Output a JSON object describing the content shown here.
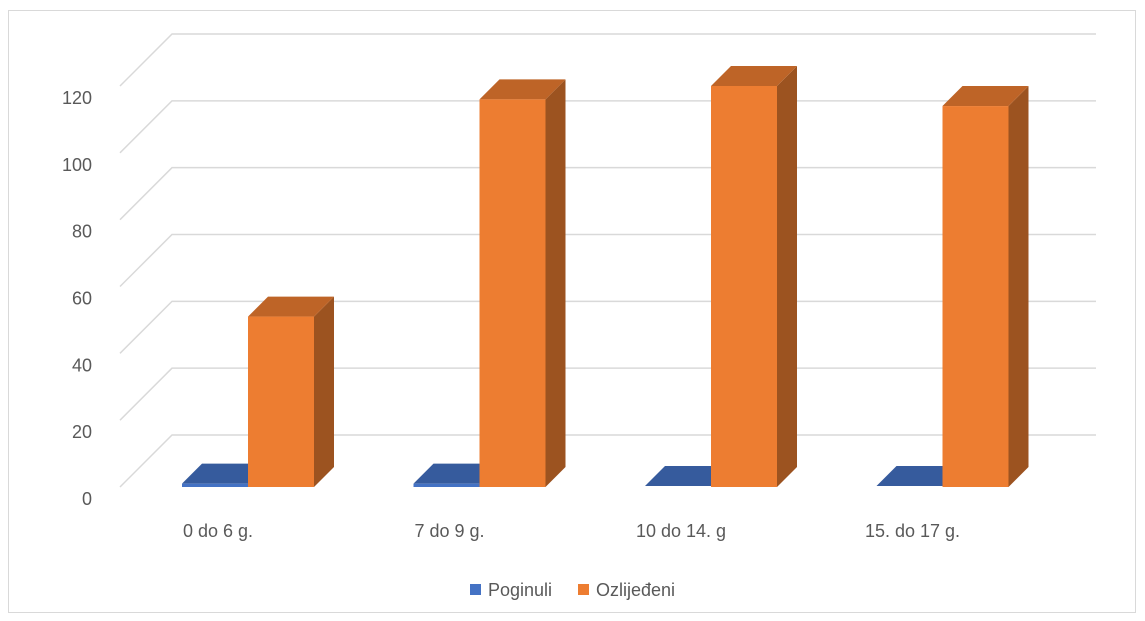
{
  "chart_data": {
    "type": "bar",
    "categories": [
      "0 do 6 g.",
      "7 do 9 g.",
      "10 do 14. g",
      "15. do 17 g."
    ],
    "series": [
      {
        "name": "Poginuli",
        "values": [
          1,
          1,
          0,
          0
        ],
        "color": "#4472C4"
      },
      {
        "name": "Ozlijeđeni",
        "values": [
          51,
          116,
          120,
          114
        ],
        "color": "#ED7D31"
      }
    ],
    "title": "",
    "xlabel": "",
    "ylabel": "",
    "ylim": [
      0,
      120
    ],
    "yticks": [
      0,
      20,
      40,
      60,
      80,
      100,
      120
    ],
    "grid": true,
    "style": "3d-column",
    "legend_position": "bottom"
  }
}
